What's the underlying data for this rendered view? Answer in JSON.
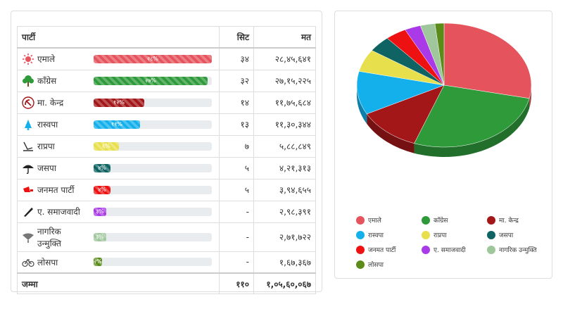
{
  "table": {
    "headers": {
      "party": "पार्टी",
      "seats": "सिट",
      "votes": "मत"
    },
    "rows": [
      {
        "party": "एमाले",
        "seats": "३४",
        "votes": "२८,४५,६४१",
        "pct_label": "२८%",
        "pct": 28,
        "color": "#e5535c",
        "icon": "sun-icon"
      },
      {
        "party": "काँग्रेस",
        "seats": "३२",
        "votes": "२७,१५,२२५",
        "pct_label": "२७%",
        "pct": 27,
        "color": "#2e9a3a",
        "icon": "tree-icon"
      },
      {
        "party": "मा. केन्द्र",
        "seats": "१४",
        "votes": "११,७५,६८४",
        "pct_label": "१२%",
        "pct": 12,
        "color": "#a31719",
        "icon": "hammer-sickle-icon"
      },
      {
        "party": "रास्वपा",
        "seats": "१३",
        "votes": "११,३०,३४४",
        "pct_label": "११%",
        "pct": 11,
        "color": "#14b0ec",
        "icon": "bell-icon"
      },
      {
        "party": "राप्रपा",
        "seats": "७",
        "votes": "५,८८,८४९",
        "pct_label": "६%",
        "pct": 6,
        "color": "#e8df4c",
        "icon": "plough-icon"
      },
      {
        "party": "जसपा",
        "seats": "५",
        "votes": "४,२१,३१३",
        "pct_label": "४%",
        "pct": 4,
        "color": "#0f6463",
        "icon": "umbrella-icon"
      },
      {
        "party": "जनमत पार्टी",
        "seats": "५",
        "votes": "३,९४,६५५",
        "pct_label": "४%",
        "pct": 4,
        "color": "#ee1111",
        "icon": "megaphone-icon"
      },
      {
        "party": "ए. समाजवादी",
        "seats": "-",
        "votes": "२,९८,३९१",
        "pct_label": "३%",
        "pct": 3,
        "color": "#aa3ae8",
        "icon": "pen-icon"
      },
      {
        "party": "नागरिक उन्मुक्ति",
        "seats": "-",
        "votes": "२,७१,७२२",
        "pct_label": "३%",
        "pct": 3,
        "color": "#9fc79b",
        "icon": "fan-icon"
      },
      {
        "party": "लोसपा",
        "seats": "-",
        "votes": "१,६७,३६७",
        "pct_label": "२%",
        "pct": 2,
        "color": "#5b8c1a",
        "icon": "bicycle-icon"
      }
    ],
    "total": {
      "label": "जम्मा",
      "seats": "११०",
      "votes": "१,०५,६०,०६७"
    }
  },
  "chart_data": {
    "type": "pie",
    "categories": [
      "एमाले",
      "काँग्रेस",
      "मा. केन्द्र",
      "रास्वपा",
      "राप्रपा",
      "जसपा",
      "जनमत पार्टी",
      "ए. समाजवादी",
      "नागरिक उन्मुक्ति",
      "लोसपा"
    ],
    "values": [
      2845641,
      2715225,
      1175684,
      1130344,
      588849,
      421313,
      394655,
      298391,
      271722,
      167367
    ],
    "colors": [
      "#e5535c",
      "#2e9a3a",
      "#a31719",
      "#14b0ec",
      "#e8df4c",
      "#0f6463",
      "#ee1111",
      "#aa3ae8",
      "#9fc79b",
      "#5b8c1a"
    ],
    "legend_position": "bottom",
    "style": "3d"
  }
}
